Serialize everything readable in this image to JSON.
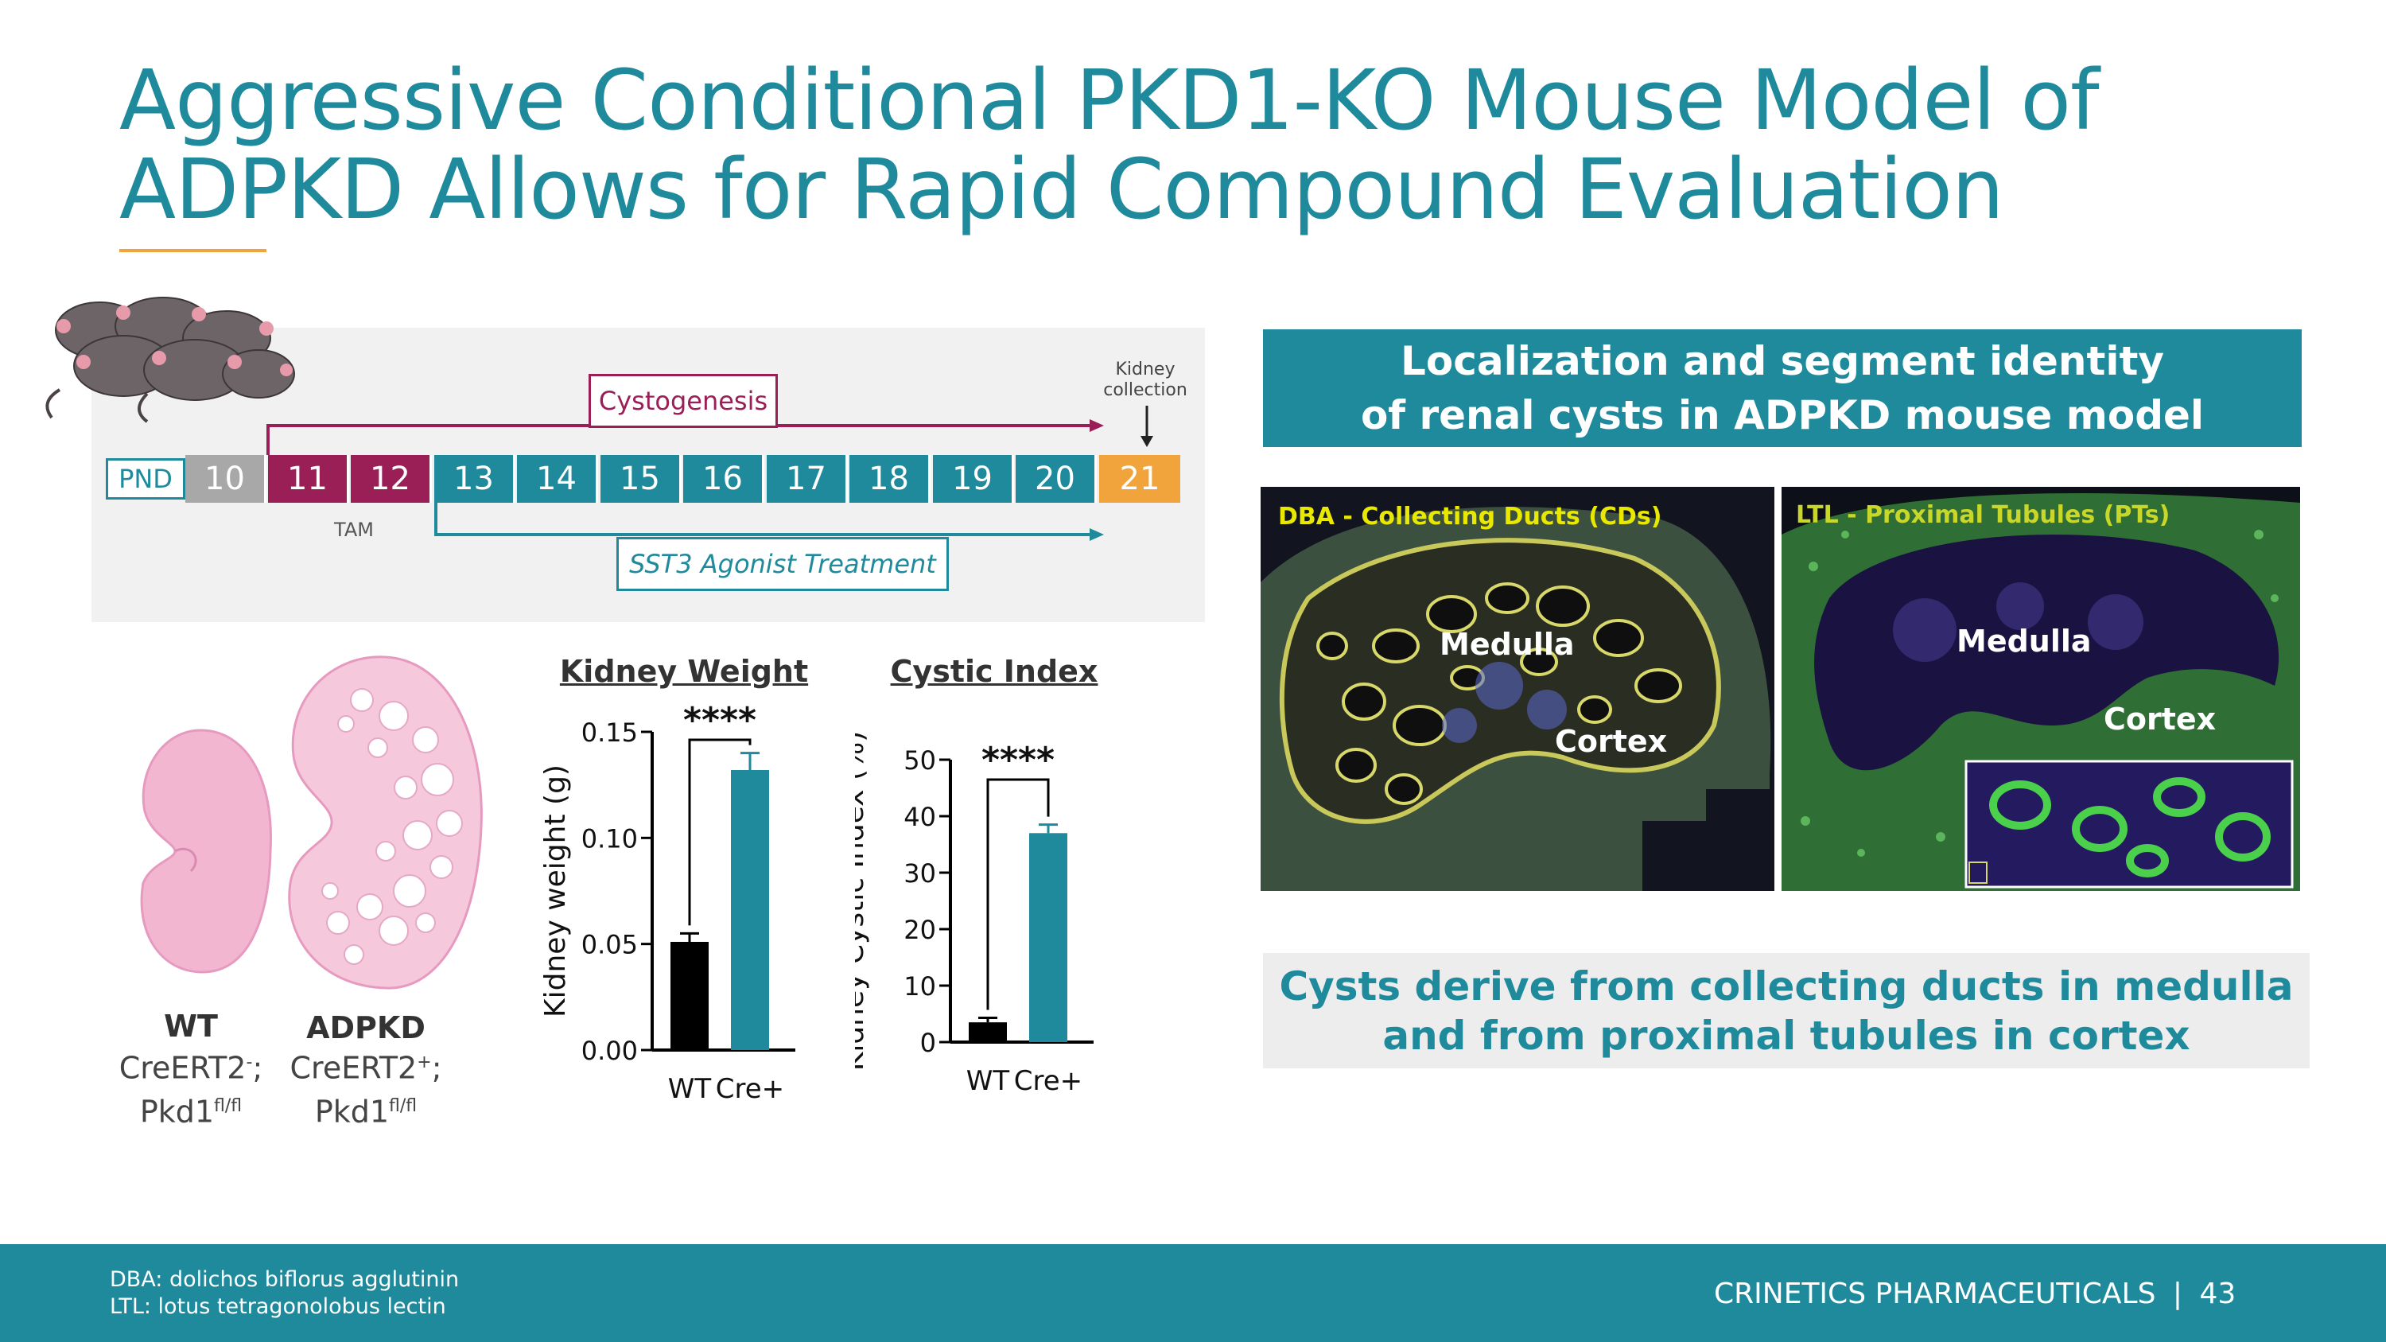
{
  "title": {
    "line1": "Aggressive Conditional PKD1-KO Mouse Model of",
    "line2": "ADPKD Allows for Rapid Compound Evaluation"
  },
  "colors": {
    "teal": "#1e8a9c",
    "magenta": "#9b1f57",
    "orange": "#f0a43b",
    "grey": "#a8a8a8",
    "accent_rule": "#f0a43b"
  },
  "timeline": {
    "pnd_label": "PND",
    "days": [
      "10",
      "11",
      "12",
      "13",
      "14",
      "15",
      "16",
      "17",
      "18",
      "19",
      "20",
      "21"
    ],
    "cystogenesis_label": "Cystogenesis",
    "kidney_collection_line1": "Kidney",
    "kidney_collection_line2": "collection",
    "tam_label": "TAM",
    "treatment_label": "SST3 Agonist Treatment",
    "mice_icon": "mice-illustration-icon"
  },
  "kidneys": {
    "wt": {
      "name": "WT",
      "genotype1": "CreERT2",
      "sup1": "-",
      "genotype1_suffix": ";",
      "genotype2": "Pkd1",
      "sup2": "fl/fl"
    },
    "adpkd": {
      "name": "ADPKD",
      "genotype1": "CreERT2",
      "sup1": "+",
      "genotype1_suffix": ";",
      "genotype2": "Pkd1",
      "sup2": "fl/fl"
    }
  },
  "chart_data": [
    {
      "type": "bar",
      "title": "Kidney Weight",
      "categories": [
        "WT",
        "Cre+"
      ],
      "values": [
        0.051,
        0.132
      ],
      "errors": [
        0.004,
        0.008
      ],
      "bar_colors": [
        "#000000",
        "#1e8a9c"
      ],
      "ylabel": "Kidney weight (g)",
      "xlabel": "",
      "ylim": [
        0,
        0.15
      ],
      "yticks": [
        "0.00",
        "0.05",
        "0.10",
        "0.15"
      ],
      "significance": "****"
    },
    {
      "type": "bar",
      "title": "Cystic Index",
      "categories": [
        "WT",
        "Cre+"
      ],
      "values": [
        3.5,
        37
      ],
      "errors": [
        0.8,
        1.5
      ],
      "bar_colors": [
        "#000000",
        "#1e8a9c"
      ],
      "ylabel": "Kidney Cystic Index (%)",
      "xlabel": "",
      "ylim": [
        0,
        50
      ],
      "yticks": [
        "0",
        "10",
        "20",
        "30",
        "40",
        "50"
      ],
      "significance": "****"
    }
  ],
  "right": {
    "banner_line1": "Localization and segment identity",
    "banner_line2": "of renal cysts in ADPKD mouse model",
    "dba_caption": "DBA - Collecting Ducts (CDs)",
    "ltl_caption": "LTL - Proximal Tubules (PTs)",
    "medulla": "Medulla",
    "cortex": "Cortex",
    "summary_line1": "Cysts derive from collecting ducts in medulla",
    "summary_line2": "and from proximal tubules in cortex"
  },
  "footer": {
    "note1": "DBA: dolichos biflorus agglutinin",
    "note2": "LTL: lotus tetragonolobus lectin",
    "company": "CRINETICS PHARMACEUTICALS",
    "separator": "|",
    "page": "43"
  }
}
